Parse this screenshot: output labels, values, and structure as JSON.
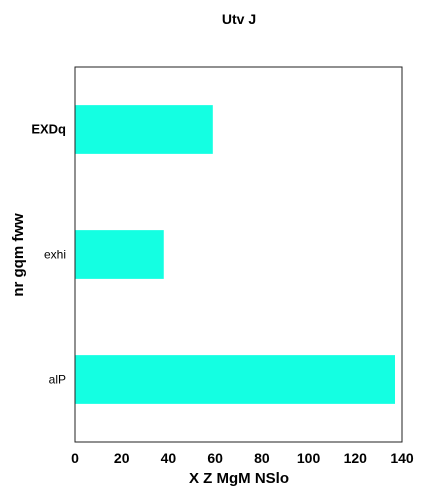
{
  "chart_data": {
    "type": "bar",
    "orientation": "horizontal",
    "title": "Utv J",
    "xlabel": "X  Z MgM NSlo",
    "ylabel": "nr gqm fww",
    "categories": [
      "EXDq",
      "exhi",
      "alP"
    ],
    "category_bold": [
      true,
      false,
      false
    ],
    "values": [
      59,
      38,
      137
    ],
    "xlim": [
      0,
      140
    ],
    "xticks": [
      0,
      20,
      40,
      60,
      80,
      100,
      120,
      140
    ],
    "grid": false,
    "legend": "none",
    "bar_color": "#14ffe2"
  }
}
